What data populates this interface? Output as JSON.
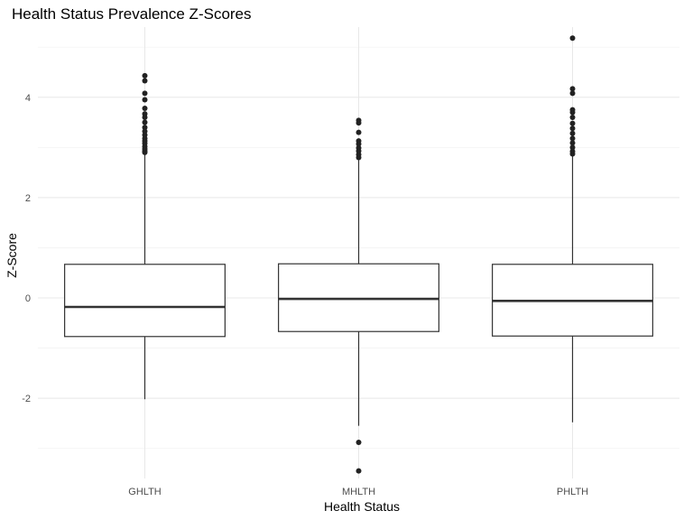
{
  "chart_data": {
    "type": "boxplot",
    "title": "Health Status Prevalence Z-Scores",
    "xlabel": "Health Status",
    "ylabel": "Z-Score",
    "categories": [
      "GHLTH",
      "MHLTH",
      "PHLTH"
    ],
    "ylim": [
      -3.6,
      5.4
    ],
    "yticks": [
      -2,
      0,
      2,
      4
    ],
    "grid": true,
    "legend": "none",
    "series": [
      {
        "category": "GHLTH",
        "whisker_low": -2.02,
        "q1": -0.77,
        "median": -0.18,
        "q3": 0.67,
        "whisker_high": 2.88,
        "outliers": [
          2.9,
          2.93,
          2.97,
          3.02,
          3.08,
          3.13,
          3.18,
          3.25,
          3.32,
          3.4,
          3.5,
          3.6,
          3.67,
          3.78,
          3.95,
          4.08,
          4.33,
          4.43
        ]
      },
      {
        "category": "MHLTH",
        "whisker_low": -2.55,
        "q1": -0.67,
        "median": -0.02,
        "q3": 0.68,
        "whisker_high": 2.75,
        "outliers": [
          2.8,
          2.86,
          2.93,
          2.99,
          3.07,
          3.13,
          3.3,
          3.49,
          3.54,
          -2.88,
          -3.45
        ]
      },
      {
        "category": "PHLTH",
        "whisker_low": -2.48,
        "q1": -0.76,
        "median": -0.06,
        "q3": 0.67,
        "whisker_high": 2.83,
        "outliers": [
          2.87,
          2.92,
          3.0,
          3.09,
          3.18,
          3.28,
          3.38,
          3.48,
          3.6,
          3.7,
          3.75,
          4.08,
          4.17,
          5.18
        ]
      }
    ]
  }
}
